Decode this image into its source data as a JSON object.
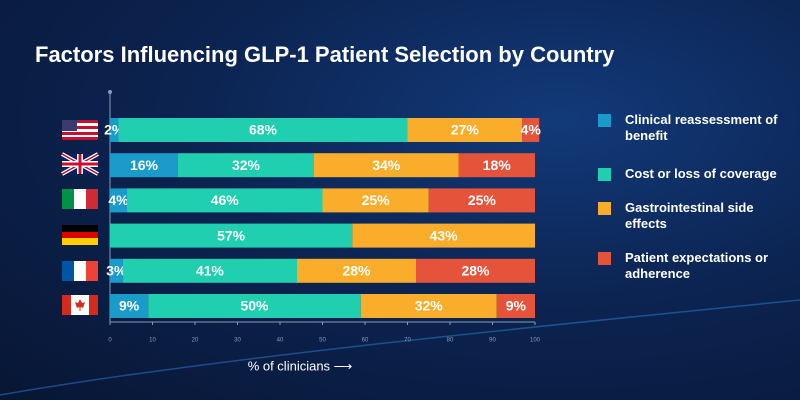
{
  "chart_data": {
    "type": "stacked-barh",
    "title": "Factors Influencing GLP-1 Patient Selection by Country",
    "xlabel": "% of clinicians ⟶",
    "categories": [
      null,
      null,
      null,
      null,
      null,
      null
    ],
    "xlim": [
      0,
      100
    ],
    "xticks": [
      0,
      10,
      20,
      30,
      40,
      50,
      60,
      70,
      80,
      90,
      100
    ],
    "grid": false,
    "legend": "right",
    "series": [
      {
        "name": "Clinical reassessment of benefit",
        "color": "#1a9bc9",
        "values": [
          2,
          16,
          4,
          null,
          3,
          9
        ],
        "value_labels": [
          "2%",
          "16%",
          "4%",
          null,
          "3%",
          "9%"
        ]
      },
      {
        "name": "Cost or loss of coverage",
        "color": "#1fcfb0",
        "values": [
          68,
          32,
          46,
          57,
          41,
          50
        ],
        "value_labels": [
          "68%",
          "32%",
          "46%",
          "57%",
          "41%",
          "50%"
        ]
      },
      {
        "name": "Gastrointestinal side effects",
        "color": "#f9ad2a",
        "values": [
          27,
          34,
          25,
          43,
          28,
          32
        ],
        "value_labels": [
          "27%",
          "34%",
          "25%",
          "43%",
          "28%",
          "32%"
        ]
      },
      {
        "name": "Patient expectations or adherence",
        "color": "#e5533b",
        "values": [
          4,
          18,
          25,
          null,
          28,
          9
        ],
        "value_labels": [
          "4%",
          "18%",
          "25%",
          null,
          "28%",
          "9%"
        ]
      }
    ]
  }
}
